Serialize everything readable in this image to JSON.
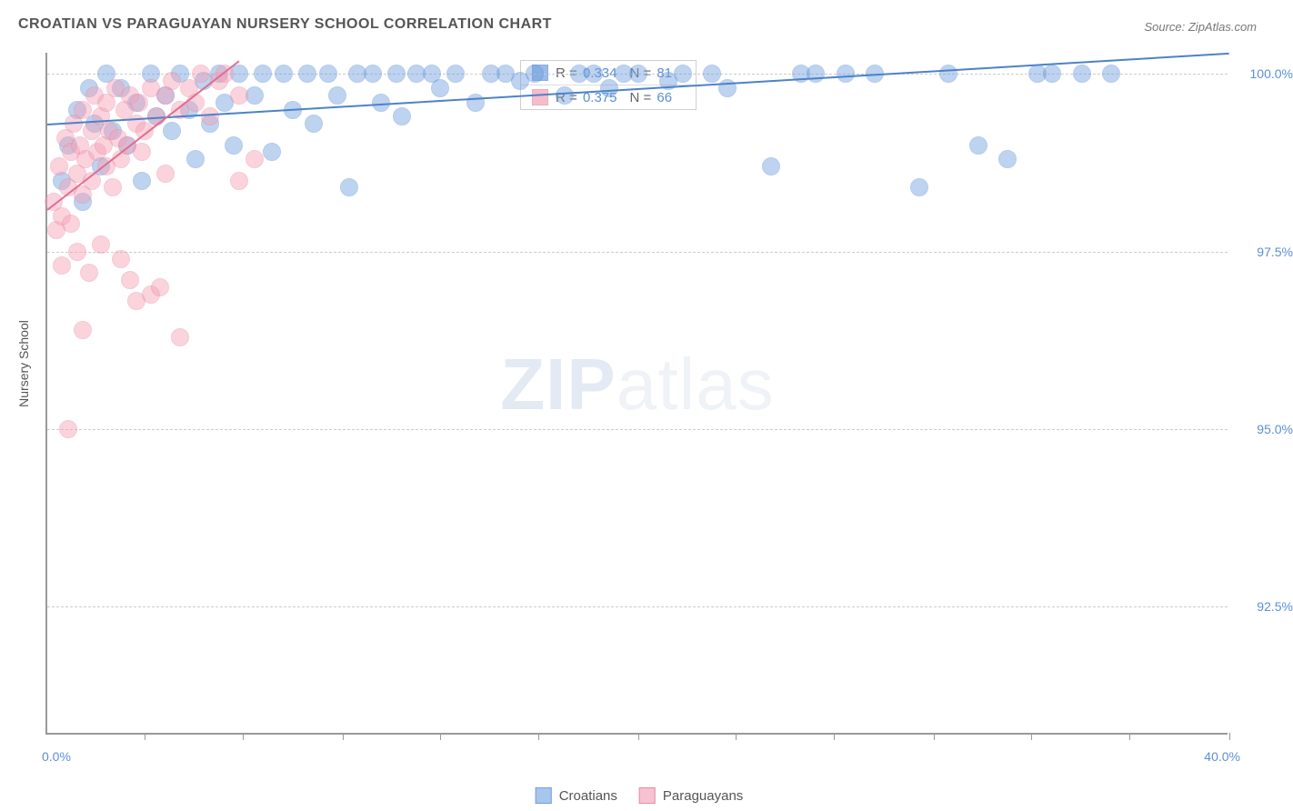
{
  "title": "CROATIAN VS PARAGUAYAN NURSERY SCHOOL CORRELATION CHART",
  "source": "Source: ZipAtlas.com",
  "yaxis_title": "Nursery School",
  "watermark_bold": "ZIP",
  "watermark_light": "atlas",
  "chart": {
    "type": "scatter",
    "xlim": [
      0,
      40
    ],
    "ylim": [
      90.7,
      100.3
    ],
    "xtick_positions": [
      3.3,
      6.6,
      10,
      13.3,
      16.6,
      20,
      23.3,
      26.6,
      30,
      33.3,
      36.6,
      40
    ],
    "ytick_positions": [
      92.5,
      95.0,
      97.5,
      100.0
    ],
    "ytick_labels": [
      "92.5%",
      "95.0%",
      "97.5%",
      "100.0%"
    ],
    "xlabel_min": "0.0%",
    "xlabel_max": "40.0%",
    "point_radius": 10,
    "point_opacity": 0.45,
    "background_color": "#ffffff",
    "grid_color": "#cccccc",
    "axis_color": "#999999"
  },
  "series": [
    {
      "name": "Croatians",
      "color_fill": "#6f9fdd",
      "color_stroke": "#5b8fd6",
      "R": "0.334",
      "N": "81",
      "trend": {
        "x1": 0,
        "y1": 99.3,
        "x2": 40,
        "y2": 100.3,
        "color": "#4d82c9",
        "width": 2
      },
      "points": [
        [
          0.5,
          98.5
        ],
        [
          0.7,
          99.0
        ],
        [
          1.0,
          99.5
        ],
        [
          1.2,
          98.2
        ],
        [
          1.4,
          99.8
        ],
        [
          1.6,
          99.3
        ],
        [
          1.8,
          98.7
        ],
        [
          2.0,
          100.0
        ],
        [
          2.2,
          99.2
        ],
        [
          2.5,
          99.8
        ],
        [
          2.7,
          99.0
        ],
        [
          3.0,
          99.6
        ],
        [
          3.2,
          98.5
        ],
        [
          3.5,
          100.0
        ],
        [
          3.7,
          99.4
        ],
        [
          4.0,
          99.7
        ],
        [
          4.2,
          99.2
        ],
        [
          4.5,
          100.0
        ],
        [
          4.8,
          99.5
        ],
        [
          5.0,
          98.8
        ],
        [
          5.3,
          99.9
        ],
        [
          5.5,
          99.3
        ],
        [
          5.8,
          100.0
        ],
        [
          6.0,
          99.6
        ],
        [
          6.3,
          99.0
        ],
        [
          6.5,
          100.0
        ],
        [
          7.0,
          99.7
        ],
        [
          7.3,
          100.0
        ],
        [
          7.6,
          98.9
        ],
        [
          8.0,
          100.0
        ],
        [
          8.3,
          99.5
        ],
        [
          8.8,
          100.0
        ],
        [
          9.0,
          99.3
        ],
        [
          9.5,
          100.0
        ],
        [
          9.8,
          99.7
        ],
        [
          10.2,
          98.4
        ],
        [
          10.5,
          100.0
        ],
        [
          11.0,
          100.0
        ],
        [
          11.3,
          99.6
        ],
        [
          11.8,
          100.0
        ],
        [
          12.0,
          99.4
        ],
        [
          12.5,
          100.0
        ],
        [
          13.0,
          100.0
        ],
        [
          13.3,
          99.8
        ],
        [
          13.8,
          100.0
        ],
        [
          14.5,
          99.6
        ],
        [
          15.0,
          100.0
        ],
        [
          15.5,
          100.0
        ],
        [
          16.0,
          99.9
        ],
        [
          16.5,
          100.0
        ],
        [
          17.5,
          99.7
        ],
        [
          18.0,
          100.0
        ],
        [
          18.5,
          100.0
        ],
        [
          19.0,
          99.8
        ],
        [
          19.5,
          100.0
        ],
        [
          20.0,
          100.0
        ],
        [
          21.0,
          99.9
        ],
        [
          21.5,
          100.0
        ],
        [
          22.5,
          100.0
        ],
        [
          23.0,
          99.8
        ],
        [
          24.5,
          98.7
        ],
        [
          25.5,
          100.0
        ],
        [
          26.0,
          100.0
        ],
        [
          27.0,
          100.0
        ],
        [
          28.0,
          100.0
        ],
        [
          29.5,
          98.4
        ],
        [
          30.5,
          100.0
        ],
        [
          31.5,
          99.0
        ],
        [
          32.5,
          98.8
        ],
        [
          33.5,
          100.0
        ],
        [
          34.0,
          100.0
        ],
        [
          35.0,
          100.0
        ],
        [
          36.0,
          100.0
        ]
      ]
    },
    {
      "name": "Paraguayans",
      "color_fill": "#f5a0b5",
      "color_stroke": "#e88ba3",
      "R": "0.375",
      "N": "66",
      "trend": {
        "x1": 0,
        "y1": 98.1,
        "x2": 6.5,
        "y2": 100.2,
        "color": "#e36b8c",
        "width": 2
      },
      "points": [
        [
          0.2,
          98.2
        ],
        [
          0.3,
          97.8
        ],
        [
          0.4,
          98.7
        ],
        [
          0.5,
          98.0
        ],
        [
          0.5,
          97.3
        ],
        [
          0.6,
          99.1
        ],
        [
          0.7,
          98.4
        ],
        [
          0.8,
          98.9
        ],
        [
          0.8,
          97.9
        ],
        [
          0.9,
          99.3
        ],
        [
          1.0,
          98.6
        ],
        [
          1.0,
          97.5
        ],
        [
          1.1,
          99.0
        ],
        [
          1.2,
          98.3
        ],
        [
          1.2,
          99.5
        ],
        [
          1.3,
          98.8
        ],
        [
          1.4,
          97.2
        ],
        [
          1.5,
          99.2
        ],
        [
          1.5,
          98.5
        ],
        [
          1.6,
          99.7
        ],
        [
          1.7,
          98.9
        ],
        [
          1.8,
          99.4
        ],
        [
          1.8,
          97.6
        ],
        [
          1.9,
          99.0
        ],
        [
          2.0,
          99.6
        ],
        [
          2.0,
          98.7
        ],
        [
          2.1,
          99.2
        ],
        [
          2.2,
          98.4
        ],
        [
          2.3,
          99.8
        ],
        [
          2.4,
          99.1
        ],
        [
          2.5,
          98.8
        ],
        [
          2.5,
          97.4
        ],
        [
          2.6,
          99.5
        ],
        [
          2.7,
          99.0
        ],
        [
          2.8,
          99.7
        ],
        [
          3.0,
          99.3
        ],
        [
          3.0,
          96.8
        ],
        [
          3.1,
          99.6
        ],
        [
          3.2,
          98.9
        ],
        [
          3.3,
          99.2
        ],
        [
          3.5,
          99.8
        ],
        [
          3.5,
          96.9
        ],
        [
          3.7,
          99.4
        ],
        [
          3.8,
          97.0
        ],
        [
          4.0,
          99.7
        ],
        [
          4.0,
          98.6
        ],
        [
          4.2,
          99.9
        ],
        [
          4.5,
          99.5
        ],
        [
          4.5,
          96.3
        ],
        [
          4.8,
          99.8
        ],
        [
          5.0,
          99.6
        ],
        [
          5.2,
          100.0
        ],
        [
          5.5,
          99.4
        ],
        [
          5.8,
          99.9
        ],
        [
          6.0,
          100.0
        ],
        [
          6.5,
          99.7
        ],
        [
          6.5,
          98.5
        ],
        [
          7.0,
          98.8
        ],
        [
          0.7,
          95.0
        ],
        [
          1.2,
          96.4
        ],
        [
          2.8,
          97.1
        ]
      ]
    }
  ],
  "legend_bottom": [
    {
      "label": "Croatians",
      "fill": "#a8c5ec",
      "stroke": "#6f9fdd"
    },
    {
      "label": "Paraguayans",
      "fill": "#f7c3d1",
      "stroke": "#e88ba3"
    }
  ],
  "legend_stats_labels": {
    "R": "R =",
    "N": "N ="
  }
}
